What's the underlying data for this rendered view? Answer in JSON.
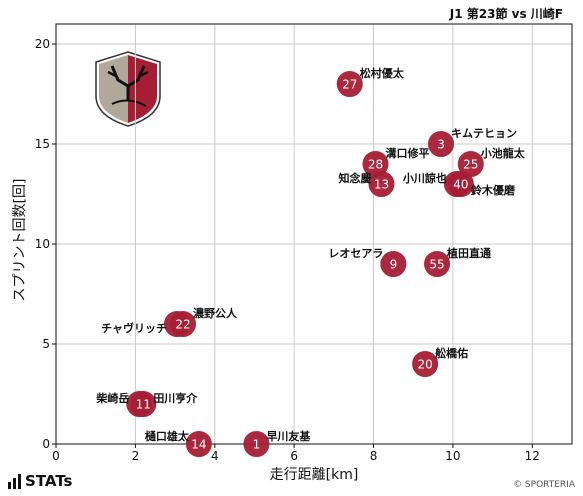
{
  "header": {
    "match_title": "J1 第23節 vs 川崎F"
  },
  "footer": {
    "brand": "STATs",
    "credit": "© SPORTERIA"
  },
  "colors": {
    "marker": "#a61e35",
    "marker_text": "#ffffff",
    "grid": "#c8c8c8"
  },
  "chart_data": {
    "type": "scatter",
    "title": "",
    "xlabel": "走行距離[km]",
    "ylabel": "スプリント回数[回]",
    "xlim": [
      0,
      13
    ],
    "ylim": [
      0,
      21
    ],
    "xticks": [
      0,
      2,
      4,
      6,
      8,
      10,
      12
    ],
    "yticks": [
      0,
      5,
      10,
      15,
      20
    ],
    "grid": true,
    "points": [
      {
        "number": "27",
        "name": "松村優太",
        "x": 7.4,
        "y": 18
      },
      {
        "number": "3",
        "name": "キムテヒョン",
        "x": 9.7,
        "y": 15
      },
      {
        "number": "28",
        "name": "溝口修平",
        "x": 8.05,
        "y": 14
      },
      {
        "number": "25",
        "name": "小池龍太",
        "x": 10.45,
        "y": 14
      },
      {
        "number": "13",
        "name": "知念慶",
        "x": 8.2,
        "y": 13
      },
      {
        "number": "40",
        "name": "小川諒也",
        "x": 10.1,
        "y": 13
      },
      {
        "number": "40",
        "name": "鈴木優磨",
        "x": 10.2,
        "y": 13
      },
      {
        "number": "9",
        "name": "レオセアラ",
        "x": 8.5,
        "y": 9
      },
      {
        "number": "55",
        "name": "植田直通",
        "x": 9.6,
        "y": 9
      },
      {
        "number": "7",
        "name": "チャヴリッチ",
        "x": 3.05,
        "y": 6
      },
      {
        "number": "22",
        "name": "濃野公人",
        "x": 3.2,
        "y": 6
      },
      {
        "number": "20",
        "name": "舩橋佑",
        "x": 9.3,
        "y": 4
      },
      {
        "number": "1",
        "name": "柴崎岳",
        "x": 2.1,
        "y": 2
      },
      {
        "number": "11",
        "name": "田川亨介",
        "x": 2.2,
        "y": 2
      },
      {
        "number": "14",
        "name": "樋口雄太",
        "x": 3.6,
        "y": 0
      },
      {
        "number": "1",
        "name": "早川友基",
        "x": 5.05,
        "y": 0
      }
    ]
  }
}
